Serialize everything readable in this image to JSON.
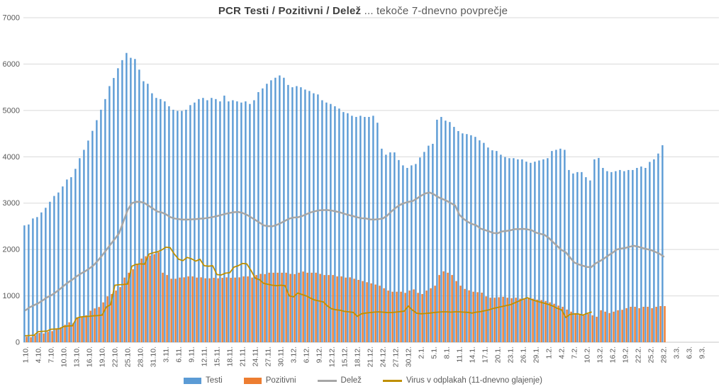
{
  "title": {
    "bold": "PCR Testi / Pozitivni / Delež",
    "rest": " ... tekoče 7-dnevno povprečje"
  },
  "colors": {
    "testi": "#5B9BD5",
    "pozitivni": "#ED7D31",
    "delez": "#A6A6A6",
    "virus": "#BF8F00",
    "grid": "#D9D9D9",
    "baseline": "#C6C6C6",
    "axis_text": "#595959",
    "background": "#FFFFFF"
  },
  "chart_data": {
    "type": "combo-bar-line",
    "title": "PCR Testi / Pozitivni / Delež ... tekoče 7-dnevno povprečje",
    "xlabel": "",
    "ylabel": "",
    "ylim": [
      0,
      7000
    ],
    "y_ticks": [
      0,
      1000,
      2000,
      3000,
      4000,
      5000,
      6000,
      7000
    ],
    "grid": "horizontal",
    "legend_position": "bottom",
    "x_tick_step_days": 3,
    "x_tick_labels": [
      "1.10.",
      "4.10.",
      "7.10.",
      "10.10.",
      "13.10.",
      "16.10.",
      "19.10.",
      "22.10.",
      "25.10.",
      "28.10.",
      "31.10.",
      "3.11.",
      "6.11.",
      "9.11.",
      "12.11.",
      "15.11.",
      "18.11.",
      "21.11.",
      "24.11.",
      "27.11.",
      "30.11.",
      "3.12.",
      "6.12.",
      "9.12.",
      "12.12.",
      "15.12.",
      "18.12.",
      "21.12.",
      "24.12.",
      "27.12.",
      "30.12.",
      "2.1.",
      "5.1.",
      "8.1.",
      "11.1.",
      "14.1.",
      "17.1.",
      "20.1.",
      "23.1.",
      "26.1.",
      "29.1.",
      "1.2.",
      "4.2.",
      "7.2.",
      "10.2.",
      "13.2.",
      "16.2.",
      "19.2.",
      "22.2.",
      "25.2.",
      "28.2.",
      "3.3.",
      "6.3.",
      "9.3."
    ],
    "series": [
      {
        "id": "testi",
        "name": "Testi",
        "type": "bar",
        "color": "#5B9BD5",
        "values": [
          2520,
          2540,
          2670,
          2700,
          2800,
          2900,
          3030,
          3155,
          3230,
          3360,
          3510,
          3560,
          3740,
          3970,
          4150,
          4350,
          4560,
          4790,
          5015,
          5245,
          5525,
          5700,
          5910,
          6085,
          6240,
          6135,
          6110,
          5880,
          5630,
          5575,
          5370,
          5270,
          5245,
          5195,
          5090,
          5015,
          4990,
          4990,
          5015,
          5115,
          5170,
          5245,
          5270,
          5220,
          5270,
          5245,
          5195,
          5320,
          5195,
          5220,
          5195,
          5170,
          5195,
          5140,
          5220,
          5395,
          5475,
          5575,
          5650,
          5705,
          5755,
          5705,
          5550,
          5500,
          5525,
          5500,
          5450,
          5420,
          5370,
          5345,
          5220,
          5170,
          5140,
          5090,
          5040,
          4965,
          4940,
          4885,
          4860,
          4885,
          4860,
          4860,
          4885,
          4735,
          4175,
          4045,
          4095,
          4095,
          3930,
          3815,
          3760,
          3815,
          3845,
          3985,
          4105,
          4240,
          4280,
          4800,
          4860,
          4780,
          4750,
          4645,
          4555,
          4505,
          4490,
          4465,
          4430,
          4355,
          4300,
          4200,
          4140,
          4125,
          4045,
          3995,
          3970,
          3970,
          3945,
          3945,
          3895,
          3870,
          3895,
          3920,
          3945,
          3970,
          4125,
          4150,
          4175,
          4150,
          3715,
          3640,
          3670,
          3670,
          3560,
          3490,
          3945,
          3975,
          3760,
          3690,
          3670,
          3690,
          3715,
          3690,
          3715,
          3715,
          3760,
          3790,
          3760,
          3890,
          3945,
          4070,
          4250
        ]
      },
      {
        "id": "pozitivni",
        "name": "Pozitivni",
        "type": "bar",
        "color": "#ED7D31",
        "values": [
          120,
          110,
          150,
          200,
          190,
          225,
          240,
          300,
          325,
          375,
          430,
          415,
          530,
          555,
          580,
          680,
          730,
          760,
          860,
          990,
          1040,
          1115,
          1190,
          1395,
          1500,
          1575,
          1675,
          1805,
          1855,
          1870,
          1900,
          1940,
          1500,
          1450,
          1370,
          1370,
          1395,
          1400,
          1420,
          1420,
          1395,
          1400,
          1380,
          1380,
          1390,
          1380,
          1390,
          1400,
          1390,
          1395,
          1400,
          1420,
          1420,
          1395,
          1450,
          1475,
          1470,
          1500,
          1500,
          1500,
          1500,
          1500,
          1475,
          1470,
          1500,
          1525,
          1500,
          1500,
          1500,
          1475,
          1450,
          1450,
          1450,
          1420,
          1420,
          1395,
          1400,
          1370,
          1345,
          1320,
          1295,
          1270,
          1245,
          1220,
          1165,
          1115,
          1090,
          1090,
          1090,
          1065,
          1115,
          1140,
          1065,
          1040,
          1115,
          1165,
          1220,
          1450,
          1530,
          1500,
          1450,
          1320,
          1220,
          1150,
          1120,
          1090,
          1080,
          1070,
          990,
          960,
          960,
          970,
          980,
          960,
          950,
          960,
          940,
          930,
          950,
          940,
          920,
          910,
          890,
          860,
          830,
          790,
          765,
          705,
          660,
          630,
          610,
          580,
          610,
          580,
          550,
          690,
          660,
          630,
          660,
          690,
          700,
          735,
          765,
          765,
          735,
          765,
          765,
          735,
          765,
          780,
          780
        ]
      },
      {
        "id": "delez",
        "name": "Delež",
        "type": "line",
        "color": "#A6A6A6",
        "stroke_width": 2.5,
        "values": [
          690,
          755,
          800,
          840,
          900,
          965,
          1010,
          1070,
          1140,
          1220,
          1290,
          1350,
          1420,
          1480,
          1530,
          1590,
          1660,
          1760,
          1870,
          1990,
          2110,
          2230,
          2350,
          2600,
          2850,
          3000,
          3030,
          3030,
          3000,
          2940,
          2880,
          2820,
          2800,
          2760,
          2700,
          2670,
          2655,
          2645,
          2645,
          2650,
          2655,
          2665,
          2670,
          2685,
          2700,
          2720,
          2745,
          2770,
          2790,
          2805,
          2810,
          2790,
          2750,
          2695,
          2640,
          2580,
          2520,
          2505,
          2500,
          2530,
          2570,
          2620,
          2665,
          2690,
          2695,
          2720,
          2760,
          2800,
          2825,
          2845,
          2850,
          2850,
          2840,
          2820,
          2800,
          2770,
          2745,
          2720,
          2695,
          2675,
          2670,
          2650,
          2645,
          2655,
          2670,
          2730,
          2820,
          2900,
          2960,
          3000,
          3030,
          3045,
          3100,
          3160,
          3210,
          3230,
          3190,
          3130,
          3090,
          3050,
          3000,
          2950,
          2750,
          2660,
          2595,
          2550,
          2520,
          2450,
          2420,
          2390,
          2355,
          2350,
          2390,
          2400,
          2415,
          2440,
          2440,
          2445,
          2435,
          2415,
          2365,
          2340,
          2315,
          2250,
          2160,
          2075,
          1990,
          1940,
          1830,
          1720,
          1680,
          1650,
          1625,
          1620,
          1700,
          1750,
          1805,
          1870,
          1930,
          2000,
          2020,
          2035,
          2060,
          2080,
          2060,
          2035,
          2010,
          1990,
          1950,
          1910,
          1850
        ]
      },
      {
        "id": "virus",
        "name": "Virus v odplakah (11-dnevno glajenje)",
        "type": "line",
        "color": "#BF8F00",
        "stroke_width": 1.8,
        "values": [
          140,
          145,
          150,
          230,
          235,
          240,
          280,
          285,
          290,
          340,
          350,
          355,
          520,
          545,
          555,
          560,
          570,
          575,
          585,
          760,
          810,
          1230,
          1240,
          1245,
          1255,
          1640,
          1680,
          1690,
          1685,
          1900,
          1930,
          1950,
          1990,
          2050,
          2040,
          1900,
          1790,
          1760,
          1830,
          1800,
          1750,
          1790,
          1650,
          1640,
          1650,
          1460,
          1450,
          1490,
          1500,
          1620,
          1650,
          1700,
          1690,
          1550,
          1380,
          1350,
          1270,
          1250,
          1230,
          1220,
          1230,
          1220,
          1000,
          980,
          1060,
          1030,
          1000,
          950,
          910,
          890,
          870,
          780,
          720,
          700,
          690,
          665,
          655,
          645,
          560,
          615,
          630,
          640,
          650,
          655,
          650,
          640,
          640,
          650,
          660,
          670,
          780,
          690,
          625,
          615,
          620,
          630,
          640,
          650,
          655,
          655,
          650,
          655,
          655,
          650,
          645,
          630,
          650,
          660,
          680,
          700,
          730,
          750,
          770,
          790,
          810,
          850,
          890,
          930,
          960,
          920,
          890,
          865,
          840,
          815,
          780,
          730,
          700,
          535,
          600,
          610,
          610,
          585,
          620,
          650,
          null,
          null,
          null,
          null,
          null,
          null,
          null,
          null,
          null,
          null,
          null,
          null,
          null,
          null,
          null,
          null,
          null
        ]
      }
    ]
  }
}
